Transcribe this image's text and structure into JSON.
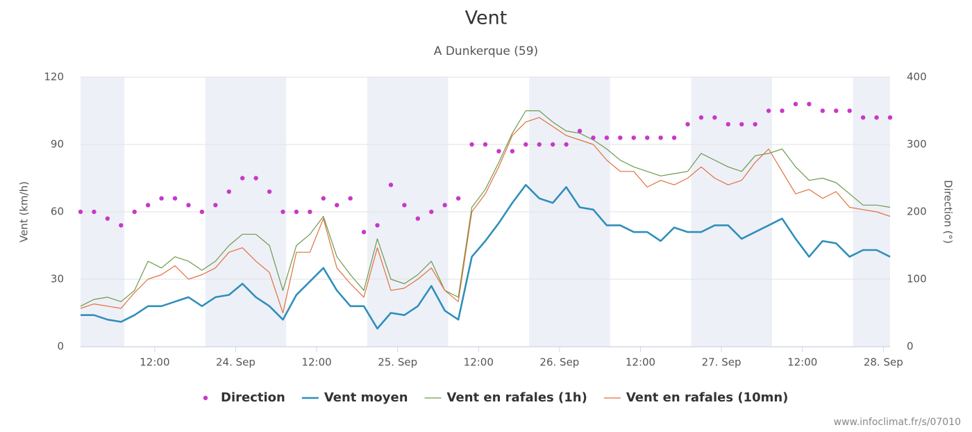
{
  "chart_data": {
    "type": "line",
    "title": "Vent",
    "subtitle": "A Dunkerque (59)",
    "ylabel": "Vent (km/h)",
    "y2label": "Direction (°)",
    "credit": "www.infoclimat.fr/s/07010",
    "xlim": [
      1,
      121
    ],
    "xticks": [
      {
        "value": 12,
        "label": "12:00"
      },
      {
        "value": 24,
        "label": "24. Sep"
      },
      {
        "value": 36,
        "label": "12:00"
      },
      {
        "value": 48,
        "label": "25. Sep"
      },
      {
        "value": 60,
        "label": "12:00"
      },
      {
        "value": 72,
        "label": "26. Sep"
      },
      {
        "value": 84,
        "label": "12:00"
      },
      {
        "value": 96,
        "label": "27. Sep"
      },
      {
        "value": 108,
        "label": "12:00"
      },
      {
        "value": 120,
        "label": "28. Sep"
      }
    ],
    "ylim": [
      0,
      120
    ],
    "yticks": [
      0,
      30,
      60,
      90,
      120
    ],
    "y2lim": [
      0,
      400
    ],
    "y2ticks": [
      0,
      100,
      200,
      300,
      400
    ],
    "grid": true,
    "legend": "bottom",
    "plot_bands": [
      [
        1,
        7.5
      ],
      [
        19.5,
        31.5
      ],
      [
        43.5,
        55.5
      ],
      [
        67.5,
        79.5
      ],
      [
        91.5,
        103.5
      ],
      [
        115.5,
        121
      ]
    ],
    "band_color": "#eef0f8",
    "x": [
      1,
      3,
      5,
      7,
      9,
      11,
      13,
      15,
      17,
      19,
      21,
      23,
      25,
      27,
      29,
      31,
      33,
      35,
      37,
      39,
      41,
      43,
      45,
      47,
      49,
      51,
      53,
      55,
      57,
      59,
      61,
      63,
      65,
      67,
      69,
      71,
      73,
      75,
      77,
      79,
      81,
      83,
      85,
      87,
      89,
      91,
      93,
      95,
      97,
      99,
      101,
      103,
      105,
      107,
      109,
      111,
      113,
      115,
      117,
      119,
      121
    ],
    "series": [
      {
        "name": "Direction",
        "color": "#c838c8",
        "style": "dots",
        "axis": "y2",
        "values": [
          200,
          200,
          190,
          180,
          200,
          210,
          220,
          220,
          210,
          200,
          210,
          230,
          250,
          250,
          230,
          200,
          200,
          200,
          220,
          210,
          220,
          170,
          180,
          240,
          210,
          190,
          200,
          210,
          220,
          300,
          300,
          290,
          290,
          300,
          300,
          300,
          300,
          320,
          310,
          310,
          310,
          310,
          310,
          310,
          310,
          330,
          340,
          340,
          330,
          330,
          330,
          350,
          350,
          360,
          360,
          350,
          350,
          350,
          340,
          340,
          340
        ]
      },
      {
        "name": "Vent moyen",
        "color": "#2f8fba",
        "style": "thick",
        "values": [
          14,
          14,
          12,
          11,
          14,
          18,
          18,
          20,
          22,
          18,
          22,
          23,
          28,
          22,
          18,
          12,
          23,
          29,
          35,
          25,
          18,
          18,
          8,
          15,
          14,
          18,
          27,
          16,
          12,
          40,
          47,
          55,
          64,
          72,
          66,
          64,
          71,
          62,
          61,
          54,
          54,
          51,
          51,
          47,
          53,
          51,
          51,
          54,
          54,
          48,
          51,
          54,
          57,
          48,
          40,
          47,
          46,
          40,
          43,
          43,
          40
        ]
      },
      {
        "name": "Vent en rafales (1h)",
        "color": "#6a9a4a",
        "style": "thin",
        "values": [
          18,
          21,
          22,
          20,
          25,
          38,
          35,
          40,
          38,
          34,
          38,
          45,
          50,
          50,
          45,
          25,
          45,
          50,
          58,
          40,
          32,
          25,
          48,
          30,
          28,
          32,
          38,
          25,
          22,
          62,
          70,
          82,
          95,
          105,
          105,
          100,
          96,
          95,
          92,
          88,
          83,
          80,
          78,
          76,
          77,
          78,
          86,
          83,
          80,
          78,
          85,
          86,
          88,
          80,
          74,
          75,
          73,
          68,
          63,
          63,
          62
        ]
      },
      {
        "name": "Vent en rafales (10mn)",
        "color": "#e0703a",
        "style": "thin",
        "values": [
          17,
          19,
          18,
          17,
          24,
          30,
          32,
          36,
          30,
          32,
          35,
          42,
          44,
          38,
          33,
          15,
          42,
          42,
          57,
          35,
          28,
          22,
          44,
          25,
          26,
          30,
          35,
          25,
          20,
          60,
          68,
          80,
          94,
          100,
          102,
          98,
          94,
          92,
          90,
          83,
          78,
          78,
          71,
          74,
          72,
          75,
          80,
          75,
          72,
          74,
          82,
          88,
          78,
          68,
          70,
          66,
          69,
          62,
          61,
          60,
          58
        ]
      }
    ]
  }
}
